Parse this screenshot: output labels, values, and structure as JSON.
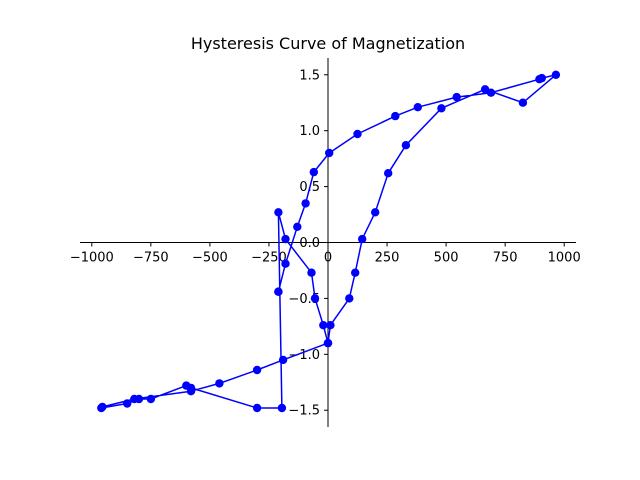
{
  "chart_data": {
    "type": "line",
    "title": "Hysteresis Curve of Magnetization",
    "xlabel": "",
    "ylabel": "",
    "xlim": [
      -1050,
      1050
    ],
    "ylim": [
      -1.65,
      1.65
    ],
    "xticks": [
      -1000,
      -750,
      -500,
      -250,
      0,
      250,
      500,
      750,
      1000
    ],
    "xtick_labels": [
      "−1000",
      "−750",
      "−500",
      "−250",
      "0",
      "250",
      "500",
      "750",
      "1000"
    ],
    "yticks": [
      -1.5,
      -1.0,
      -0.5,
      0.0,
      0.5,
      1.0,
      1.5
    ],
    "ytick_labels": [
      "−1.5",
      "−1.0",
      "−0.5",
      "0.0",
      "0.5",
      "1.0",
      "1.5"
    ],
    "grid": false,
    "legend": "none",
    "spines": "centered at zero",
    "series": [
      {
        "color": "#0000ff",
        "marker": "circle",
        "x": [
          0,
          -20,
          -55,
          -70,
          -180,
          -210,
          -195,
          -300,
          -580,
          -600,
          -750,
          -800,
          -850,
          -960,
          -955,
          -820,
          -580,
          -460,
          -300,
          -190,
          0,
          10,
          90,
          115,
          145,
          200,
          255,
          330,
          480,
          665,
          825,
          965,
          905,
          895,
          690,
          545,
          380,
          285,
          125,
          5,
          -60,
          -95,
          -130,
          -180,
          -210,
          -210
        ],
        "y": [
          -0.9,
          -0.74,
          -0.5,
          -0.27,
          0.03,
          0.27,
          -1.48,
          -1.48,
          -1.3,
          -1.28,
          -1.4,
          -1.4,
          -1.44,
          -1.48,
          -1.47,
          -1.4,
          -1.33,
          -1.26,
          -1.14,
          -1.05,
          -0.9,
          -0.74,
          -0.5,
          -0.27,
          0.03,
          0.27,
          0.62,
          0.87,
          1.2,
          1.37,
          1.25,
          1.5,
          1.47,
          1.46,
          1.34,
          1.3,
          1.21,
          1.13,
          0.97,
          0.8,
          0.63,
          0.35,
          0.14,
          -0.19,
          -0.44,
          -0.44
        ]
      }
    ]
  }
}
